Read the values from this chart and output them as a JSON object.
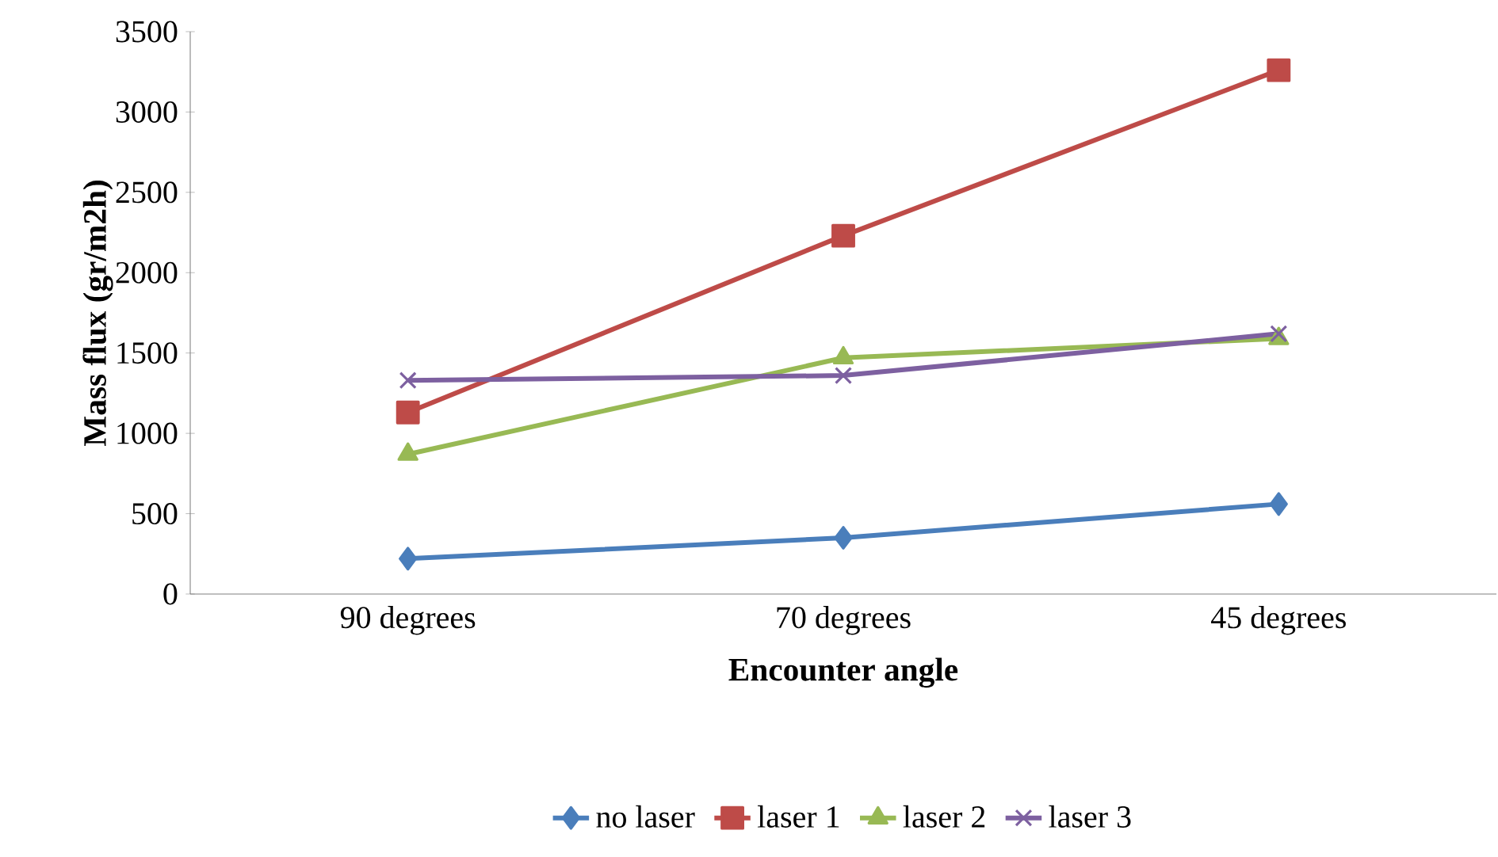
{
  "chart_data": {
    "type": "line",
    "xlabel": "Encounter angle",
    "ylabel": "Mass flux (gr/m2h)",
    "categories": [
      "90 degrees",
      "70 degrees",
      "45 degrees"
    ],
    "series": [
      {
        "name": "no laser",
        "color": "#4a7ebb",
        "marker": "diamond",
        "values": [
          220,
          350,
          560
        ]
      },
      {
        "name": "laser 1",
        "color": "#be4b48",
        "marker": "square",
        "values": [
          1130,
          2230,
          3260
        ]
      },
      {
        "name": "laser 2",
        "color": "#98b954",
        "marker": "triangle",
        "values": [
          870,
          1470,
          1590
        ]
      },
      {
        "name": "laser 3",
        "color": "#7d60a0",
        "marker": "cross",
        "values": [
          1330,
          1360,
          1620
        ]
      }
    ],
    "ylim": [
      0,
      3500
    ],
    "yticks": [
      0,
      500,
      1000,
      1500,
      2000,
      2500,
      3000,
      3500
    ],
    "legend": "bottom",
    "grid": false,
    "line_style": "solid"
  }
}
